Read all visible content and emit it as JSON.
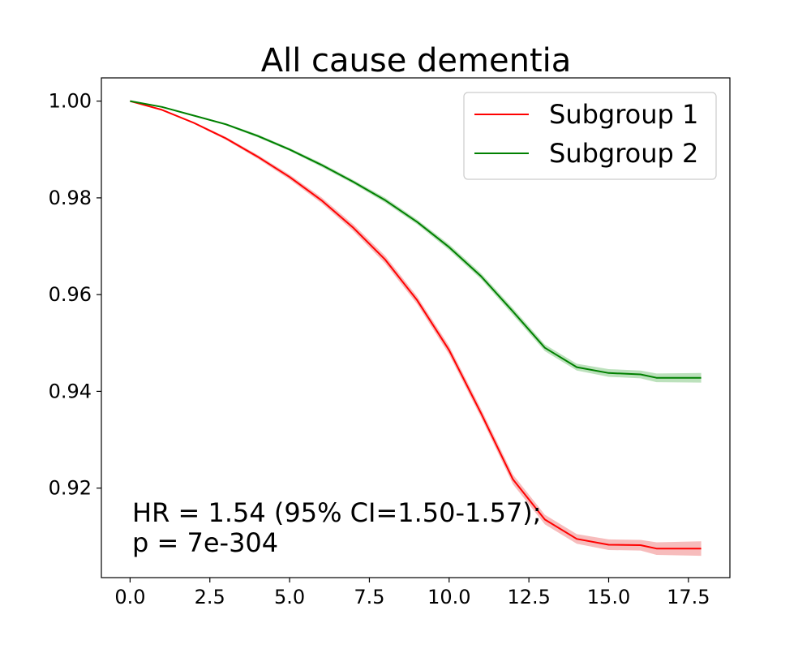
{
  "chart_data": {
    "type": "line",
    "title": "All cause dementia",
    "xlabel": "",
    "ylabel": "",
    "xlim": [
      -0.9,
      18.8
    ],
    "ylim": [
      0.9015,
      1.0048
    ],
    "xticks": [
      0.0,
      2.5,
      5.0,
      7.5,
      10.0,
      12.5,
      15.0,
      17.5
    ],
    "xtick_labels": [
      "0.0",
      "2.5",
      "5.0",
      "7.5",
      "10.0",
      "12.5",
      "15.0",
      "17.5"
    ],
    "yticks": [
      0.92,
      0.94,
      0.96,
      0.98,
      1.0
    ],
    "ytick_labels": [
      "0.92",
      "0.94",
      "0.96",
      "0.98",
      "1.00"
    ],
    "grid": false,
    "legend_position": "top-right",
    "series": [
      {
        "name": "Subgroup 1",
        "color": "#ff0000",
        "ci_fill": "#f4a0a0",
        "x": [
          0,
          1,
          2,
          3,
          4,
          5,
          6,
          7,
          8,
          9,
          10,
          11,
          12,
          13,
          14,
          15,
          16,
          16.5,
          17.9
        ],
        "y": [
          1.0,
          0.9982,
          0.9955,
          0.9923,
          0.9885,
          0.9843,
          0.9795,
          0.9738,
          0.9672,
          0.9588,
          0.9485,
          0.9355,
          0.9218,
          0.9135,
          0.9095,
          0.9083,
          0.9082,
          0.9075,
          0.9075
        ],
        "ci_halfwidth": [
          0,
          0.0001,
          0.0002,
          0.0003,
          0.0004,
          0.0005,
          0.0006,
          0.0007,
          0.0008,
          0.0008,
          0.0009,
          0.0009,
          0.001,
          0.001,
          0.001,
          0.0011,
          0.0011,
          0.0013,
          0.0015
        ]
      },
      {
        "name": "Subgroup 2",
        "color": "#008000",
        "ci_fill": "#9fd49f",
        "x": [
          0,
          1,
          2,
          3,
          4,
          5,
          6,
          7,
          8,
          9,
          10,
          11,
          12,
          13,
          14,
          15,
          16,
          16.5,
          17.9
        ],
        "y": [
          1.0,
          0.9988,
          0.997,
          0.9952,
          0.9928,
          0.99,
          0.9868,
          0.9833,
          0.9795,
          0.975,
          0.9698,
          0.9638,
          0.9565,
          0.949,
          0.945,
          0.9438,
          0.9435,
          0.9428,
          0.9428
        ],
        "ci_halfwidth": [
          0,
          0.0001,
          0.0001,
          0.0002,
          0.0003,
          0.0003,
          0.0004,
          0.0004,
          0.0005,
          0.0005,
          0.0006,
          0.0006,
          0.0007,
          0.0007,
          0.0007,
          0.0008,
          0.0008,
          0.0009,
          0.001
        ]
      }
    ],
    "annotation": {
      "line1": "HR = 1.54 (95% CI=1.50-1.57);",
      "line2": "p = 7e-304"
    }
  }
}
